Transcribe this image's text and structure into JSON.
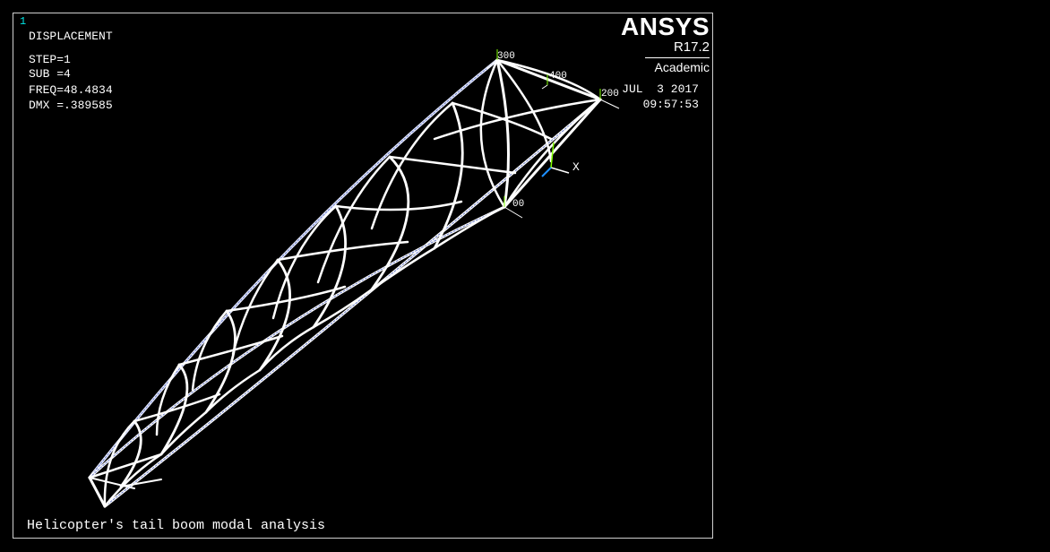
{
  "window": {
    "number": "1",
    "result_type": "DISPLACEMENT",
    "step": "STEP=1",
    "sub": "SUB =4",
    "freq": "FREQ=48.4834",
    "dmx": "DMX =.389585",
    "date": "JUL  3 2017",
    "time": "09:57:53",
    "caption": "Helicopter's tail boom modal analysis"
  },
  "logo": {
    "brand": "ANSYS",
    "version": "R17.2",
    "edition": "Academic"
  },
  "node_labels": [
    "300",
    "400",
    "200",
    "00"
  ],
  "triad": {
    "axis_label": "X"
  },
  "colors": {
    "background": "#000000",
    "mesh": "#ffffff",
    "window_number": "#00e5e5",
    "triad_green": "#7fff00",
    "triad_blue": "#1e90ff"
  }
}
